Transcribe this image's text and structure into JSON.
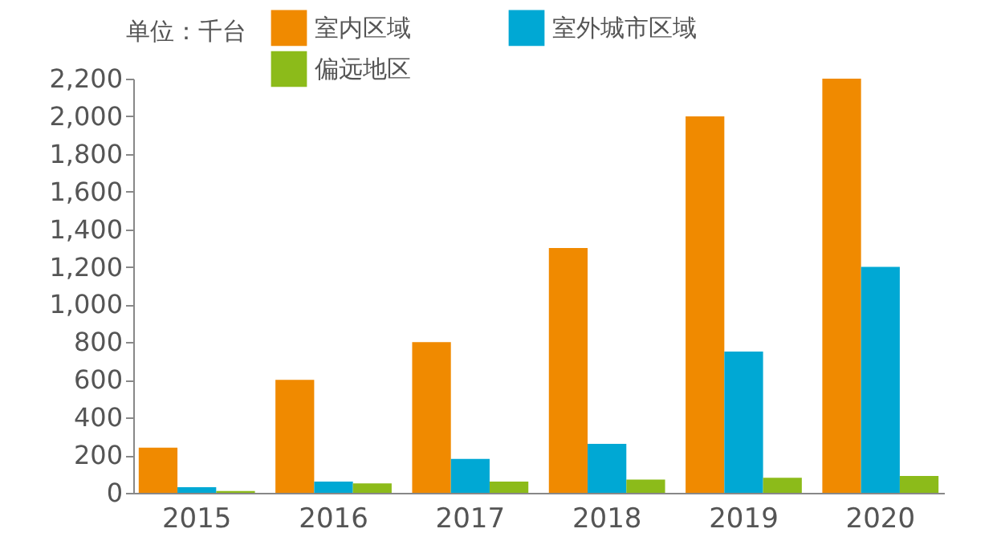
{
  "chart_data": {
    "type": "bar",
    "ylabel": "单位：千台",
    "categories": [
      "2015",
      "2016",
      "2017",
      "2018",
      "2019",
      "2020"
    ],
    "series": [
      {
        "name": "室内区域",
        "color": "#f08a00",
        "values": [
          240,
          600,
          800,
          1300,
          2000,
          2200
        ]
      },
      {
        "name": "室外城市区域",
        "color": "#00a8d4",
        "values": [
          30,
          60,
          180,
          260,
          750,
          1200
        ]
      },
      {
        "name": "偏远地区",
        "color": "#8cbb1a",
        "values": [
          10,
          50,
          60,
          70,
          80,
          90
        ]
      }
    ],
    "ylim": [
      0,
      2200
    ],
    "yticks": [
      {
        "value": 0,
        "label": "0"
      },
      {
        "value": 200,
        "label": "200"
      },
      {
        "value": 400,
        "label": "400"
      },
      {
        "value": 600,
        "label": "600"
      },
      {
        "value": 800,
        "label": "800"
      },
      {
        "value": 1000,
        "label": "1,000"
      },
      {
        "value": 1200,
        "label": "1,200"
      },
      {
        "value": 1400,
        "label": "1,400"
      },
      {
        "value": 1600,
        "label": "1,600"
      },
      {
        "value": 1800,
        "label": "1,800"
      },
      {
        "value": 2000,
        "label": "2,000"
      },
      {
        "value": 2200,
        "label": "2,200"
      }
    ],
    "grid": false,
    "legend": "top"
  }
}
